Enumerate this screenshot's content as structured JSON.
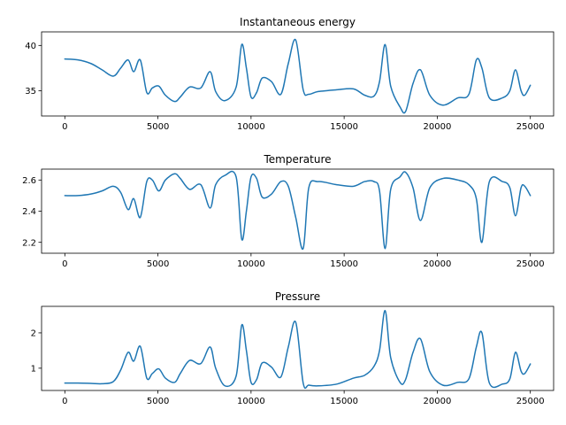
{
  "chart_data": [
    {
      "type": "line",
      "title": "Instantaneous energy",
      "xlabel": "",
      "ylabel": "",
      "xlim": [
        -1250,
        26250
      ],
      "ylim": [
        32.2,
        41.5
      ],
      "xticks": [
        0,
        5000,
        10000,
        15000,
        20000,
        25000
      ],
      "xtick_labels": [
        "0",
        "5000",
        "10000",
        "15000",
        "20000",
        "25000"
      ],
      "yticks": [
        35,
        40
      ],
      "ytick_labels": [
        "35",
        "40"
      ],
      "grid": false,
      "color": "#1f77b4",
      "x": [
        0,
        700,
        1400,
        2000,
        2600,
        3000,
        3400,
        3700,
        4050,
        4400,
        4700,
        5050,
        5400,
        5900,
        6200,
        6700,
        7300,
        7800,
        8100,
        8600,
        9200,
        9500,
        9750,
        10000,
        10300,
        10600,
        11100,
        11600,
        12000,
        12400,
        12800,
        13100,
        13600,
        14600,
        15500,
        16100,
        16600,
        16900,
        17200,
        17500,
        18000,
        18300,
        18700,
        19100,
        19600,
        20300,
        21100,
        21700,
        22100,
        22400,
        22800,
        23500,
        23900,
        24200,
        24500,
        24700,
        25000
      ],
      "y": [
        38.5,
        38.4,
        38.0,
        37.3,
        36.6,
        37.5,
        38.4,
        37.1,
        38.4,
        34.8,
        35.3,
        35.5,
        34.5,
        33.8,
        34.3,
        35.4,
        35.3,
        37.1,
        34.9,
        33.9,
        35.4,
        40.1,
        37.5,
        34.3,
        34.8,
        36.4,
        36.0,
        34.6,
        38.0,
        40.6,
        35.1,
        34.6,
        34.9,
        35.1,
        35.2,
        34.5,
        34.4,
        36.0,
        40.1,
        35.5,
        33.2,
        32.7,
        35.8,
        37.3,
        34.5,
        33.4,
        34.2,
        34.6,
        38.4,
        37.5,
        34.2,
        34.2,
        35.0,
        37.3,
        35.0,
        34.5,
        35.6
      ]
    },
    {
      "type": "line",
      "title": "Temperature",
      "xlabel": "",
      "ylabel": "",
      "xlim": [
        -1250,
        26250
      ],
      "ylim": [
        2.13,
        2.67
      ],
      "xticks": [
        0,
        5000,
        10000,
        15000,
        20000,
        25000
      ],
      "xtick_labels": [
        "0",
        "5000",
        "10000",
        "15000",
        "20000",
        "25000"
      ],
      "yticks": [
        2.2,
        2.4,
        2.6
      ],
      "ytick_labels": [
        "2.2",
        "2.4",
        "2.6"
      ],
      "grid": false,
      "color": "#1f77b4",
      "x": [
        0,
        700,
        1400,
        2000,
        2600,
        3000,
        3400,
        3700,
        4050,
        4400,
        4700,
        5050,
        5400,
        5900,
        6200,
        6700,
        7300,
        7800,
        8100,
        8600,
        9200,
        9500,
        9750,
        10000,
        10300,
        10600,
        11100,
        11600,
        12000,
        12400,
        12800,
        13100,
        13600,
        14600,
        15500,
        16100,
        16600,
        16900,
        17200,
        17500,
        18000,
        18300,
        18700,
        19100,
        19600,
        20300,
        21100,
        21700,
        22100,
        22400,
        22800,
        23500,
        23900,
        24200,
        24500,
        24700,
        25000
      ],
      "y": [
        2.5,
        2.5,
        2.51,
        2.53,
        2.56,
        2.52,
        2.41,
        2.48,
        2.36,
        2.59,
        2.6,
        2.53,
        2.6,
        2.64,
        2.61,
        2.54,
        2.57,
        2.42,
        2.57,
        2.63,
        2.62,
        2.22,
        2.4,
        2.62,
        2.61,
        2.49,
        2.51,
        2.59,
        2.56,
        2.36,
        2.16,
        2.55,
        2.59,
        2.57,
        2.56,
        2.59,
        2.59,
        2.53,
        2.16,
        2.54,
        2.62,
        2.65,
        2.55,
        2.34,
        2.55,
        2.61,
        2.6,
        2.57,
        2.48,
        2.2,
        2.59,
        2.59,
        2.55,
        2.37,
        2.55,
        2.56,
        2.5
      ]
    },
    {
      "type": "line",
      "title": "Pressure",
      "xlabel": "",
      "ylabel": "",
      "xlim": [
        -1250,
        26250
      ],
      "ylim": [
        0.37,
        2.75
      ],
      "xticks": [
        0,
        5000,
        10000,
        15000,
        20000,
        25000
      ],
      "xtick_labels": [
        "0",
        "5000",
        "10000",
        "15000",
        "20000",
        "25000"
      ],
      "yticks": [
        1,
        2
      ],
      "ytick_labels": [
        "1",
        "2"
      ],
      "grid": false,
      "color": "#1f77b4",
      "x": [
        0,
        700,
        1400,
        2000,
        2600,
        3000,
        3400,
        3700,
        4050,
        4400,
        4700,
        5050,
        5400,
        5900,
        6200,
        6700,
        7300,
        7800,
        8100,
        8600,
        9200,
        9500,
        9750,
        10000,
        10300,
        10600,
        11100,
        11600,
        12000,
        12400,
        12800,
        13100,
        13600,
        14600,
        15500,
        16100,
        16600,
        16900,
        17200,
        17500,
        18000,
        18300,
        18700,
        19100,
        19600,
        20300,
        21100,
        21700,
        22100,
        22400,
        22800,
        23500,
        23900,
        24200,
        24500,
        24700,
        25000
      ],
      "y": [
        0.58,
        0.58,
        0.57,
        0.56,
        0.62,
        0.95,
        1.45,
        1.2,
        1.62,
        0.72,
        0.85,
        0.98,
        0.72,
        0.6,
        0.85,
        1.22,
        1.13,
        1.6,
        1.0,
        0.5,
        0.78,
        2.22,
        1.5,
        0.6,
        0.68,
        1.15,
        1.03,
        0.75,
        1.6,
        2.3,
        0.58,
        0.52,
        0.5,
        0.55,
        0.72,
        0.8,
        1.05,
        1.5,
        2.63,
        1.3,
        0.6,
        0.68,
        1.45,
        1.83,
        0.9,
        0.52,
        0.6,
        0.7,
        1.6,
        2.0,
        0.58,
        0.55,
        0.7,
        1.45,
        0.92,
        0.85,
        1.12
      ]
    }
  ]
}
